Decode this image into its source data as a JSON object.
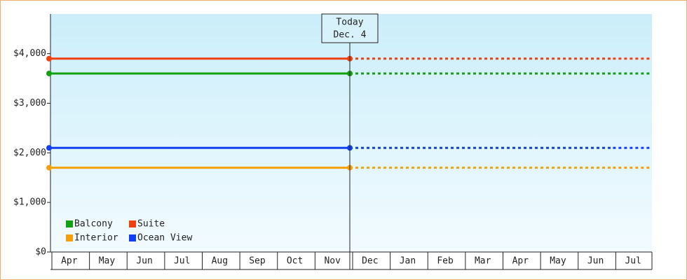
{
  "chart_data": {
    "type": "line",
    "categories": [
      "Apr",
      "May",
      "Jun",
      "Jul",
      "Aug",
      "Sep",
      "Oct",
      "Nov",
      "Dec",
      "Jan",
      "Feb",
      "Mar",
      "Apr",
      "May",
      "Jun",
      "Jul"
    ],
    "series": [
      {
        "name": "Balcony",
        "color": "#13a013",
        "values": [
          3600,
          3600,
          3600,
          3600,
          3600,
          3600,
          3600,
          3600,
          3600,
          3600,
          3600,
          3600,
          3600,
          3600,
          3600,
          3600
        ]
      },
      {
        "name": "Suite",
        "color": "#f04010",
        "values": [
          3900,
          3900,
          3900,
          3900,
          3900,
          3900,
          3900,
          3900,
          3900,
          3900,
          3900,
          3900,
          3900,
          3900,
          3900,
          3900
        ]
      },
      {
        "name": "Interior",
        "color": "#f5a00a",
        "values": [
          1700,
          1700,
          1700,
          1700,
          1700,
          1700,
          1700,
          1700,
          1700,
          1700,
          1700,
          1700,
          1700,
          1700,
          1700,
          1700
        ]
      },
      {
        "name": "Ocean View",
        "color": "#1040f0",
        "values": [
          2100,
          2100,
          2100,
          2100,
          2100,
          2100,
          2100,
          2100,
          2100,
          2100,
          2100,
          2100,
          2100,
          2100,
          2100,
          2100
        ]
      }
    ],
    "ylim": [
      0,
      4800
    ],
    "yticks": [
      {
        "value": 0,
        "label": "$0"
      },
      {
        "value": 1000,
        "label": "$1,000"
      },
      {
        "value": 2000,
        "label": "$2,000"
      },
      {
        "value": 3000,
        "label": "$3,000"
      },
      {
        "value": 4000,
        "label": "$4,000"
      }
    ],
    "annotation": [
      "Today",
      "Dec. 4"
    ],
    "annotation_index": 8,
    "legend": "lower left"
  }
}
